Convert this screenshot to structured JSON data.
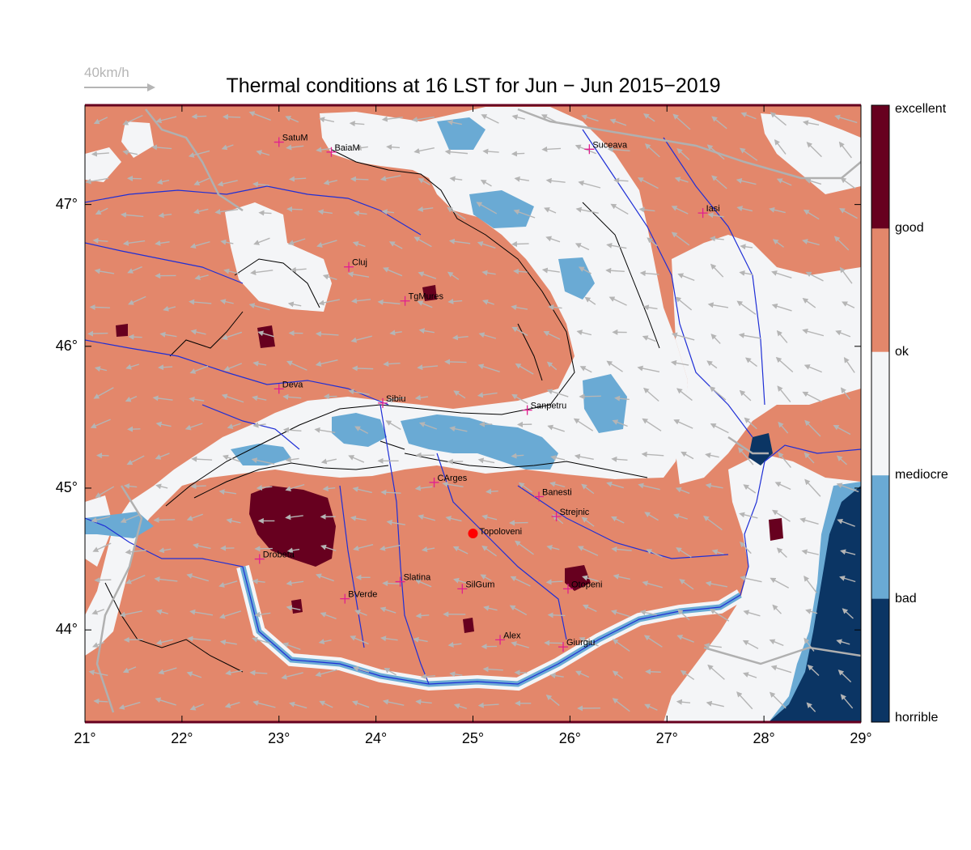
{
  "title": "Thermal conditions at 16 LST for Jun − Jun  2015−2019",
  "wind_reference": "40km/h",
  "map": {
    "lon_range": [
      21,
      29
    ],
    "lat_range": [
      43.35,
      47.7
    ],
    "lon_ticks": [
      "21°",
      "22°",
      "23°",
      "24°",
      "25°",
      "26°",
      "27°",
      "28°",
      "29°"
    ],
    "lat_ticks": [
      "47°",
      "46°",
      "45°",
      "44°"
    ],
    "colors": {
      "excellent": "#67001f",
      "good": "#e3876b",
      "ok": "#f4f5f7",
      "mediocre": "#6aaad4",
      "bad": "#0b3564",
      "river": "#1f2fd6",
      "border": "#b0b0b0",
      "city_marker": "#e0208f",
      "highlight_marker": "#ff0000",
      "wind_arrow": "#b5b5b5",
      "contour": "#000000"
    },
    "cities": [
      {
        "name": "SatuM",
        "lon": 23.0,
        "lat": 47.44
      },
      {
        "name": "BaiaM",
        "lon": 23.54,
        "lat": 47.37
      },
      {
        "name": "Suceava",
        "lon": 26.2,
        "lat": 47.39
      },
      {
        "name": "Iasi",
        "lon": 27.37,
        "lat": 46.94
      },
      {
        "name": "Cluj",
        "lon": 23.72,
        "lat": 46.56
      },
      {
        "name": "TgMures",
        "lon": 24.3,
        "lat": 46.32
      },
      {
        "name": "Deva",
        "lon": 23.0,
        "lat": 45.7
      },
      {
        "name": "Sibiu",
        "lon": 24.07,
        "lat": 45.6
      },
      {
        "name": "Sanpetru",
        "lon": 25.56,
        "lat": 45.55
      },
      {
        "name": "CArges",
        "lon": 24.6,
        "lat": 45.04
      },
      {
        "name": "Banesti",
        "lon": 25.68,
        "lat": 44.94
      },
      {
        "name": "Strejnic",
        "lon": 25.86,
        "lat": 44.8
      },
      {
        "name": "Drobeta",
        "lon": 22.8,
        "lat": 44.5
      },
      {
        "name": "Slatina",
        "lon": 24.25,
        "lat": 44.34
      },
      {
        "name": "BVerde",
        "lon": 23.68,
        "lat": 44.22
      },
      {
        "name": "SilGum",
        "lon": 24.89,
        "lat": 44.29
      },
      {
        "name": "Otopeni",
        "lon": 25.98,
        "lat": 44.29
      },
      {
        "name": "Alex",
        "lon": 25.28,
        "lat": 43.93
      },
      {
        "name": "Giurgiu",
        "lon": 25.93,
        "lat": 43.88
      }
    ],
    "highlight": {
      "name": "Topoloveni",
      "lon": 25.0,
      "lat": 44.68
    }
  },
  "legend": {
    "labels": [
      "excellent",
      "good",
      "ok",
      "mediocre",
      "bad",
      "horrible"
    ],
    "bands": [
      {
        "color": "#67001f"
      },
      {
        "color": "#e3876b"
      },
      {
        "color": "#f4f5f7"
      },
      {
        "color": "#6aaad4"
      },
      {
        "color": "#0b3564"
      }
    ]
  }
}
